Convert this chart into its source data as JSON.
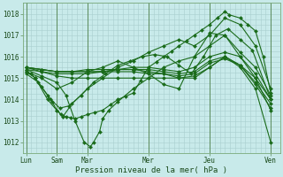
{
  "title": "",
  "xlabel": "Pression niveau de la mer( hPa )",
  "ylabel": "",
  "bg_color": "#c8eaea",
  "grid_color": "#a8cece",
  "line_color": "#1a6b1a",
  "ylim": [
    1011.5,
    1018.5
  ],
  "yticks": [
    1012,
    1013,
    1014,
    1015,
    1016,
    1017,
    1018
  ],
  "xtick_labels": [
    "Lun",
    "Sam",
    "Mar",
    "Mer",
    "Jeu",
    "Ven"
  ],
  "xtick_positions": [
    0,
    1,
    2,
    4,
    6,
    8
  ],
  "xlim": [
    -0.1,
    8.3
  ],
  "figsize": [
    3.2,
    2.0
  ],
  "dpi": 100,
  "lines": [
    [
      0.0,
      1015.3,
      0.15,
      1015.2,
      0.3,
      1015.0,
      0.5,
      1014.6,
      0.7,
      1014.2,
      0.85,
      1013.9,
      1.0,
      1013.5,
      1.15,
      1013.3,
      1.3,
      1013.2,
      1.45,
      1013.15,
      1.6,
      1013.1,
      1.8,
      1013.2,
      2.0,
      1013.3,
      2.25,
      1013.4,
      2.5,
      1013.5,
      2.75,
      1013.75,
      3.0,
      1014.0,
      3.25,
      1014.15,
      3.5,
      1014.3,
      3.75,
      1014.9,
      4.0,
      1015.5,
      4.25,
      1015.75,
      4.5,
      1016.0,
      4.75,
      1016.25,
      5.0,
      1016.5,
      5.25,
      1016.75,
      5.5,
      1017.0,
      5.75,
      1017.25,
      6.0,
      1017.5,
      6.25,
      1017.8,
      6.5,
      1018.1,
      6.65,
      1017.95,
      7.0,
      1017.8,
      7.25,
      1017.5,
      7.5,
      1017.2,
      7.75,
      1016.0,
      8.0,
      1014.3
    ],
    [
      0.0,
      1015.3,
      0.3,
      1015.0,
      0.7,
      1014.0,
      1.0,
      1013.5,
      1.2,
      1013.2,
      1.5,
      1013.8,
      2.0,
      1014.5,
      2.5,
      1015.0,
      3.0,
      1015.5,
      3.5,
      1015.8,
      4.0,
      1016.2,
      4.5,
      1016.5,
      5.0,
      1016.8,
      5.5,
      1016.5,
      6.0,
      1017.0,
      6.5,
      1017.8,
      7.0,
      1017.5,
      7.5,
      1016.5,
      8.0,
      1014.5
    ],
    [
      0.0,
      1015.2,
      0.4,
      1014.8,
      0.8,
      1014.0,
      1.1,
      1013.6,
      1.4,
      1013.7,
      1.8,
      1014.2,
      2.2,
      1014.8,
      2.6,
      1015.2,
      3.0,
      1015.6,
      3.4,
      1015.8,
      3.8,
      1016.0,
      4.2,
      1016.1,
      4.6,
      1016.0,
      5.0,
      1015.6,
      5.4,
      1015.2,
      5.8,
      1016.0,
      6.2,
      1017.0,
      6.6,
      1017.3,
      7.0,
      1016.8,
      7.4,
      1016.3,
      8.0,
      1014.0
    ],
    [
      0.0,
      1015.3,
      0.5,
      1015.0,
      1.0,
      1014.5,
      1.5,
      1014.8,
      2.0,
      1015.3,
      2.5,
      1015.5,
      3.0,
      1015.8,
      3.5,
      1015.5,
      4.0,
      1015.2,
      4.5,
      1014.7,
      5.0,
      1014.5,
      5.5,
      1016.0,
      6.0,
      1017.1,
      6.5,
      1017.0,
      7.0,
      1016.2,
      7.5,
      1015.5,
      8.0,
      1014.2
    ],
    [
      0.0,
      1015.4,
      0.5,
      1015.1,
      1.0,
      1014.8,
      1.3,
      1014.2,
      1.6,
      1013.0,
      1.9,
      1012.0,
      2.1,
      1011.8,
      2.2,
      1012.0,
      2.4,
      1012.5,
      2.5,
      1013.1,
      2.7,
      1013.5,
      3.0,
      1013.9,
      3.5,
      1014.5,
      4.0,
      1015.0,
      4.5,
      1015.5,
      5.0,
      1015.8,
      5.5,
      1016.0,
      6.0,
      1016.5,
      6.5,
      1017.0,
      7.0,
      1016.0,
      7.5,
      1015.0,
      8.0,
      1014.0
    ],
    [
      0.0,
      1015.5,
      0.5,
      1015.3,
      1.0,
      1015.1,
      1.5,
      1015.0,
      2.0,
      1015.0,
      2.5,
      1015.0,
      3.0,
      1015.0,
      3.5,
      1015.0,
      4.0,
      1015.0,
      4.5,
      1015.0,
      5.0,
      1015.0,
      5.5,
      1015.0,
      6.0,
      1015.5,
      6.5,
      1016.0,
      7.0,
      1015.5,
      7.5,
      1014.5,
      8.0,
      1012.0
    ],
    [
      0.0,
      1015.5,
      0.5,
      1015.4,
      1.0,
      1015.3,
      1.5,
      1015.3,
      2.0,
      1015.3,
      2.5,
      1015.3,
      3.0,
      1015.3,
      3.5,
      1015.3,
      4.0,
      1015.2,
      4.5,
      1015.2,
      5.0,
      1015.0,
      5.5,
      1015.1,
      6.0,
      1015.5,
      6.5,
      1016.0,
      7.0,
      1015.6,
      7.5,
      1015.0,
      8.0,
      1013.5
    ],
    [
      0.0,
      1015.5,
      0.5,
      1015.4,
      1.0,
      1015.3,
      1.5,
      1015.3,
      2.0,
      1015.4,
      2.5,
      1015.4,
      3.0,
      1015.4,
      3.5,
      1015.4,
      4.0,
      1015.4,
      4.5,
      1015.3,
      5.0,
      1015.2,
      5.5,
      1015.3,
      6.0,
      1015.8,
      6.5,
      1016.0,
      7.0,
      1015.6,
      7.5,
      1014.8,
      8.0,
      1013.8
    ],
    [
      0.0,
      1015.4,
      0.5,
      1015.3,
      1.0,
      1015.2,
      1.5,
      1015.2,
      2.0,
      1015.2,
      2.5,
      1015.3,
      3.0,
      1015.4,
      3.5,
      1015.4,
      4.0,
      1015.3,
      4.5,
      1015.2,
      5.0,
      1015.1,
      5.5,
      1015.2,
      6.0,
      1015.7,
      6.5,
      1015.9,
      7.0,
      1015.6,
      7.5,
      1014.7,
      8.0,
      1013.6
    ],
    [
      0.0,
      1015.5,
      0.5,
      1015.4,
      1.0,
      1015.3,
      1.5,
      1015.3,
      2.0,
      1015.3,
      2.5,
      1015.3,
      3.0,
      1015.4,
      3.5,
      1015.5,
      4.0,
      1015.5,
      4.5,
      1015.4,
      5.0,
      1015.3,
      5.5,
      1015.5,
      6.0,
      1016.0,
      6.5,
      1016.2,
      7.0,
      1016.0,
      7.5,
      1015.2,
      8.0,
      1014.0
    ]
  ],
  "n_xgrid": 49,
  "n_ygrid": 29
}
